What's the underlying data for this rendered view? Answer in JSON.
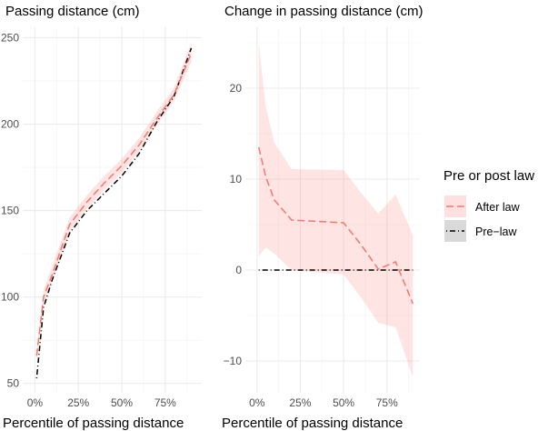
{
  "chart_data": [
    {
      "type": "line",
      "title": "Passing distance (cm)",
      "xlabel": "Percentile of passing distance",
      "ylabel": "",
      "xlim": [
        -7,
        96
      ],
      "ylim": [
        44.6,
        256
      ],
      "x_ticks": [
        0,
        25,
        50,
        75
      ],
      "x_tick_labels": [
        "0%",
        "25%",
        "50%",
        "75%"
      ],
      "y_ticks": [
        50,
        100,
        150,
        200,
        250
      ],
      "y_tick_labels": [
        "50",
        "100",
        "150",
        "200",
        "250"
      ],
      "grid": true,
      "x": [
        1,
        5,
        10,
        20,
        30,
        40,
        50,
        60,
        70,
        80,
        90
      ],
      "series": [
        {
          "name": "After law",
          "color": "#F8766D",
          "dash": "dashed",
          "values": [
            66,
            100,
            113,
            142,
            155,
            166,
            176,
            188,
            203,
            217,
            241
          ],
          "lower": [
            62,
            96,
            109,
            138,
            151,
            162,
            172,
            184,
            199,
            213,
            236
          ],
          "upper": [
            70,
            104,
            118,
            146,
            159,
            170,
            180,
            192,
            207,
            221,
            247
          ]
        },
        {
          "name": "Pre-law",
          "color": "#000000",
          "dash": "dotdash",
          "values": [
            53,
            94,
            110,
            137,
            150,
            160,
            170,
            183,
            201,
            216,
            244
          ]
        }
      ]
    },
    {
      "type": "line",
      "title": "Change in passing distance (cm)",
      "xlabel": "Percentile of passing distance",
      "ylabel": "",
      "xlim": [
        -6.7,
        94
      ],
      "ylim": [
        -13.5,
        26.7
      ],
      "x_ticks": [
        0,
        25,
        50,
        75
      ],
      "x_tick_labels": [
        "0%",
        "25%",
        "50%",
        "75%"
      ],
      "y_ticks": [
        -10,
        0,
        10,
        20
      ],
      "y_tick_labels": [
        "−10",
        "0",
        "10",
        "20"
      ],
      "grid": true,
      "x": [
        1,
        5,
        10,
        20,
        50,
        60,
        70,
        80,
        90
      ],
      "series": [
        {
          "name": "After law",
          "color": "#F8766D",
          "dash": "dashed",
          "values": [
            13.5,
            10.3,
            7.7,
            5.5,
            5.2,
            2.8,
            0.1,
            0.9,
            -3.7
          ],
          "lower": [
            1.5,
            2.5,
            1.8,
            0,
            -0.5,
            -3,
            -5.8,
            -6.3,
            -11.8
          ],
          "upper": [
            25,
            18,
            14,
            11.1,
            11,
            8.5,
            6.2,
            8.3,
            3.8
          ]
        },
        {
          "name": "Pre-law",
          "color": "#000000",
          "dash": "dotdash",
          "values": [
            0,
            0,
            0,
            0,
            0,
            0,
            0,
            0,
            0
          ]
        }
      ]
    }
  ],
  "legend": {
    "title": "Pre or post law",
    "placement": "right",
    "items": [
      {
        "label": "After law",
        "color": "#F8766D",
        "fill": "#FDE0DF"
      },
      {
        "label": "Pre−law",
        "color": "#000000",
        "fill": "#D9D9D9"
      }
    ]
  }
}
